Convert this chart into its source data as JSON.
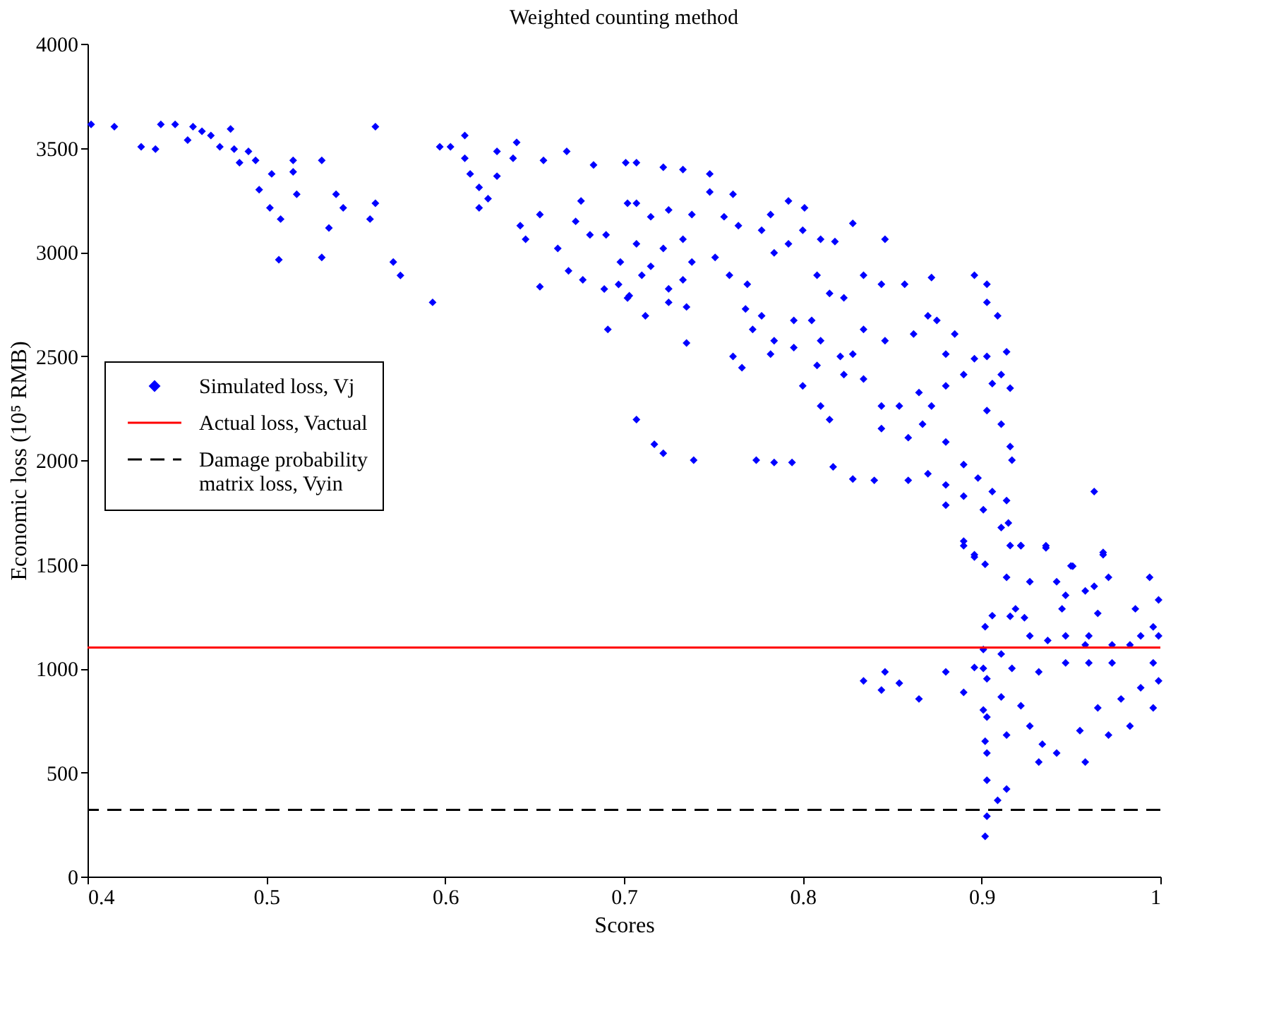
{
  "chart_data": {
    "type": "scatter",
    "title": "Weighted counting method",
    "xlabel": "Scores",
    "ylabel": "Economic loss (10⁵ RMB)",
    "xlim": [
      0.4,
      1
    ],
    "xticks": [
      0.4,
      0.5,
      0.6,
      0.7,
      0.8,
      0.9,
      1
    ],
    "ylim": [
      0,
      4000
    ],
    "yticks": [
      0,
      500,
      1000,
      1500,
      2000,
      2500,
      3000,
      3500,
      4000
    ],
    "grid": false,
    "legend": "left",
    "marker": "diamond",
    "series": [
      {
        "name": "Simulated loss, Vj",
        "color": "#0000ff",
        "x": [
          0.402,
          0.415,
          0.43,
          0.438,
          0.441,
          0.449,
          0.456,
          0.459,
          0.464,
          0.469,
          0.474,
          0.48,
          0.482,
          0.485,
          0.49,
          0.494,
          0.496,
          0.503,
          0.502,
          0.508,
          0.507,
          0.515,
          0.515,
          0.517,
          0.531,
          0.531,
          0.535,
          0.539,
          0.543,
          0.558,
          0.561,
          0.561,
          0.571,
          0.575,
          0.593,
          0.597,
          0.603,
          0.611,
          0.611,
          0.614,
          0.619,
          0.619,
          0.624,
          0.629,
          0.629,
          0.638,
          0.64,
          0.642,
          0.645,
          0.653,
          0.653,
          0.655,
          0.663,
          0.668,
          0.669,
          0.673,
          0.676,
          0.677,
          0.681,
          0.683,
          0.689,
          0.69,
          0.691,
          0.698,
          0.697,
          0.702,
          0.701,
          0.702,
          0.707,
          0.722,
          0.733,
          0.748,
          0.707,
          0.715,
          0.725,
          0.738,
          0.748,
          0.761,
          0.756,
          0.764,
          0.777,
          0.782,
          0.792,
          0.801,
          0.707,
          0.722,
          0.733,
          0.715,
          0.738,
          0.751,
          0.759,
          0.769,
          0.784,
          0.792,
          0.8,
          0.81,
          0.818,
          0.828,
          0.846,
          0.703,
          0.71,
          0.725,
          0.733,
          0.712,
          0.725,
          0.735,
          0.768,
          0.777,
          0.772,
          0.795,
          0.808,
          0.815,
          0.823,
          0.834,
          0.844,
          0.857,
          0.872,
          0.896,
          0.903,
          0.903,
          0.909,
          0.735,
          0.761,
          0.766,
          0.782,
          0.784,
          0.795,
          0.805,
          0.81,
          0.808,
          0.821,
          0.828,
          0.834,
          0.846,
          0.862,
          0.87,
          0.875,
          0.885,
          0.88,
          0.896,
          0.903,
          0.914,
          0.8,
          0.81,
          0.815,
          0.823,
          0.834,
          0.844,
          0.854,
          0.865,
          0.872,
          0.88,
          0.89,
          0.906,
          0.911,
          0.916,
          0.844,
          0.859,
          0.867,
          0.88,
          0.89,
          0.903,
          0.911,
          0.916,
          0.707,
          0.717,
          0.722,
          0.739,
          0.774,
          0.784,
          0.794,
          0.817,
          0.828,
          0.84,
          0.859,
          0.87,
          0.88,
          0.89,
          0.898,
          0.906,
          0.914,
          0.915,
          0.916,
          0.89,
          0.896,
          0.922,
          0.936,
          0.963,
          0.968,
          0.95,
          0.88,
          0.901,
          0.89,
          0.896,
          0.911,
          0.922,
          0.936,
          0.914,
          0.927,
          0.919,
          0.924,
          0.906,
          0.942,
          0.951,
          0.947,
          0.945,
          0.958,
          0.963,
          0.968,
          0.971,
          0.965,
          0.96,
          0.994,
          0.999,
          0.986,
          0.989,
          0.996,
          0.927,
          0.937,
          0.947,
          0.958,
          0.973,
          0.983,
          0.901,
          0.911,
          0.88,
          0.896,
          0.89,
          0.834,
          0.844,
          0.846,
          0.854,
          0.865,
          0.903,
          0.911,
          0.922,
          0.932,
          0.947,
          0.96,
          0.973,
          0.996,
          0.903,
          0.914,
          0.927,
          0.934,
          0.932,
          0.942,
          0.955,
          0.958,
          0.971,
          0.983,
          0.996,
          0.999,
          0.989,
          0.903,
          0.903,
          0.914,
          0.909,
          0.903,
          0.902,
          0.965,
          0.978,
          0.999,
          0.917,
          0.916,
          0.917,
          0.902,
          0.902,
          0.901,
          0.901,
          0.902
        ],
        "values": [
          3613,
          3602,
          3505,
          3494,
          3613,
          3613,
          3537,
          3602,
          3580,
          3559,
          3505,
          3591,
          3494,
          3429,
          3483,
          3440,
          3299,
          3375,
          3212,
          3158,
          2963,
          3440,
          3385,
          3277,
          3440,
          2974,
          3115,
          3277,
          3212,
          3158,
          3602,
          3234,
          2952,
          2887,
          2758,
          3505,
          3505,
          3559,
          3450,
          3375,
          3310,
          3212,
          3256,
          3483,
          3364,
          3450,
          3526,
          3126,
          3061,
          3180,
          2833,
          3440,
          3017,
          3483,
          2909,
          3147,
          3245,
          2866,
          3082,
          3418,
          2822,
          3082,
          2628,
          2952,
          2844,
          2779,
          3429,
          3234,
          3429,
          3407,
          3396,
          3375,
          3234,
          3169,
          3202,
          3180,
          3288,
          3277,
          3169,
          3126,
          3104,
          3180,
          3245,
          3212,
          3039,
          3017,
          3061,
          2931,
          2952,
          2974,
          2888,
          2845,
          2996,
          3039,
          3104,
          3061,
          3050,
          3137,
          3061,
          2790,
          2888,
          2823,
          2866,
          2693,
          2758,
          2736,
          2726,
          2693,
          2628,
          2671,
          2888,
          2801,
          2780,
          2888,
          2845,
          2845,
          2877,
          2888,
          2845,
          2758,
          2693,
          2563,
          2498,
          2444,
          2509,
          2574,
          2541,
          2671,
          2574,
          2455,
          2498,
          2509,
          2628,
          2574,
          2606,
          2693,
          2671,
          2606,
          2509,
          2487,
          2498,
          2520,
          2357,
          2260,
          2195,
          2411,
          2390,
          2260,
          2260,
          2325,
          2260,
          2357,
          2411,
          2368,
          2411,
          2346,
          2152,
          2108,
          2173,
          2087,
          1979,
          2238,
          2173,
          2065,
          2195,
          2076,
          2033,
          2000,
          2000,
          1989,
          1989,
          1968,
          1909,
          1903,
          1903,
          1935,
          1881,
          1827,
          1914,
          1849,
          1806,
          1698,
          1590,
          1611,
          1546,
          1590,
          1579,
          1849,
          1557,
          1492,
          1784,
          1762,
          1589,
          1535,
          1676,
          1589,
          1589,
          1437,
          1416,
          1286,
          1243,
          1253,
          1416,
          1491,
          1351,
          1286,
          1372,
          1394,
          1546,
          1437,
          1264,
          1156,
          1437,
          1329,
          1286,
          1156,
          1199,
          1156,
          1134,
          1156,
          1113,
          1113,
          1113,
          1091,
          1069,
          983,
          1004,
          885,
          940,
          896,
          983,
          929,
          853,
          950,
          863,
          820,
          983,
          1026,
          1026,
          1026,
          1026,
          766,
          680,
          723,
          636,
          550,
          593,
          701,
          550,
          680,
          723,
          810,
          940,
          907,
          593,
          463,
          420,
          366,
          290,
          193,
          810,
          853,
          1156,
          2000,
          1250,
          1000,
          1500,
          1200,
          1000,
          800,
          650
        ]
      }
    ],
    "ref_lines": [
      {
        "axis": "y",
        "value": 1100,
        "label": "Actual loss, Vactual",
        "color": "#ff0000",
        "line_style": "solid"
      },
      {
        "axis": "y",
        "value": 320,
        "label": "Damage probability matrix loss, Vyin",
        "color": "#000000",
        "line_style": "dashed"
      }
    ]
  }
}
